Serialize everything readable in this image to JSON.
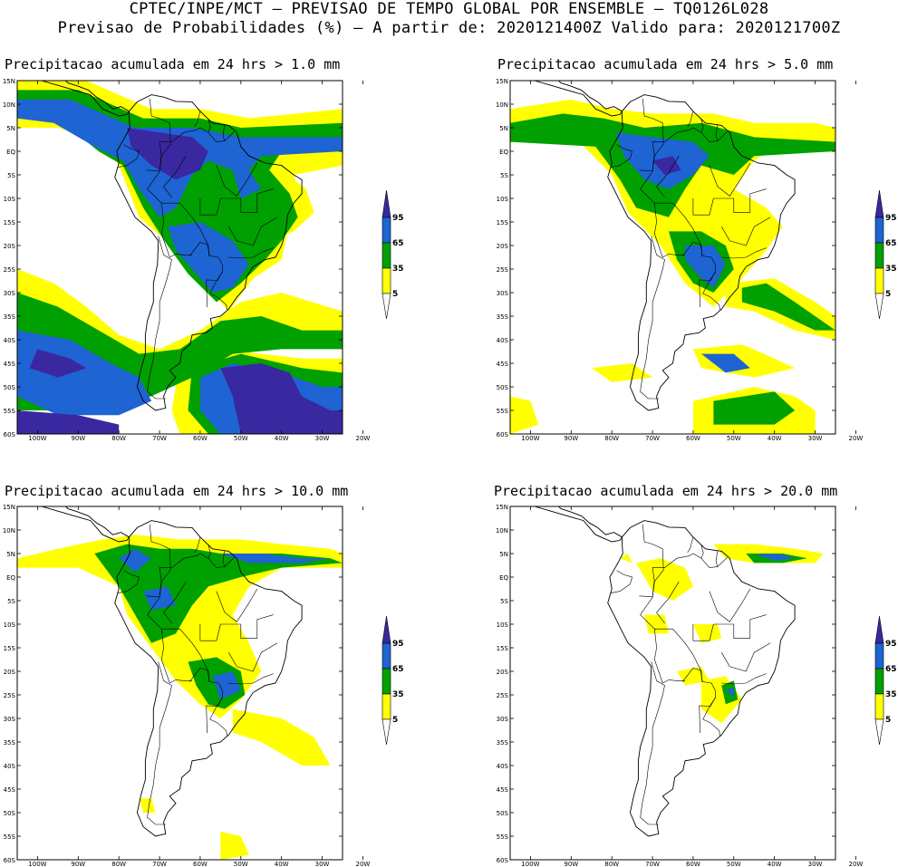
{
  "header": {
    "line1": "CPTEC/INPE/MCT – PREVISAO DE TEMPO GLOBAL POR ENSEMBLE – TQ0126L028",
    "line2": "Previsao de Probabilidades (%) –  A partir de: 2020121400Z  Valido para: 2020121700Z"
  },
  "colors": {
    "p5": "#ffff00",
    "p35": "#00a000",
    "p65": "#1e64d2",
    "p95": "#3a28a0",
    "coast": "#000000"
  },
  "axes": {
    "lat_labels": [
      "15N",
      "10N",
      "5N",
      "EQ",
      "5S",
      "10S",
      "15S",
      "20S",
      "25S",
      "30S",
      "35S",
      "40S",
      "45S",
      "50S",
      "55S",
      "60S"
    ],
    "lon_labels": [
      "100W",
      "90W",
      "80W",
      "70W",
      "60W",
      "50W",
      "40W",
      "30W",
      "20W"
    ]
  },
  "legend": {
    "labels": [
      "95",
      "65",
      "35",
      "5"
    ]
  },
  "panels": [
    {
      "title": "Precipitacao acumulada em 24 hrs > 1.0 mm"
    },
    {
      "title": "Precipitacao acumulada em 24 hrs > 5.0 mm"
    },
    {
      "title": "Precipitacao acumulada em 24 hrs > 10.0 mm"
    },
    {
      "title": "Precipitacao acumulada em 24 hrs > 20.0 mm"
    }
  ]
}
